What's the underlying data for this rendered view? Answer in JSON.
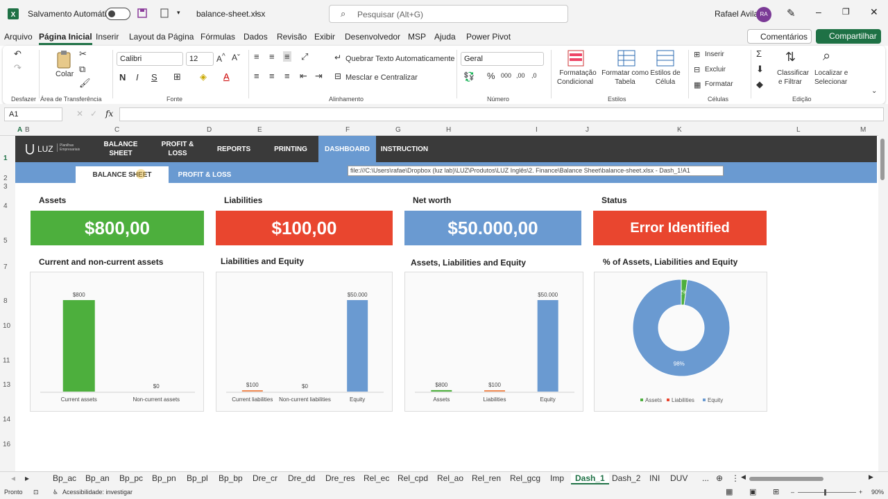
{
  "titlebar": {
    "autosave_label": "Salvamento Automático",
    "filename": "balance-sheet.xlsx",
    "search_placeholder": "Pesquisar (Alt+G)",
    "user_name": "Rafael Avila",
    "user_initials": "RA"
  },
  "menu": {
    "items": [
      "Arquivo",
      "Página Inicial",
      "Inserir",
      "Layout da Página",
      "Fórmulas",
      "Dados",
      "Revisão",
      "Exibir",
      "Desenvolvedor",
      "MSP",
      "Ajuda",
      "Power Pivot"
    ],
    "comments": "Comentários",
    "share": "Compartilhar"
  },
  "ribbon": {
    "undo_group": "Desfazer",
    "paste": "Colar",
    "clipboard_group": "Área de Transferência",
    "font_name": "Calibri",
    "font_size": "12",
    "font_group": "Fonte",
    "wrap_text": "Quebrar Texto Automaticamente",
    "merge_center": "Mesclar e Centralizar",
    "alignment_group": "Alinhamento",
    "number_format": "Geral",
    "number_group": "Número",
    "cond_format_1": "Formatação",
    "cond_format_2": "Condicional",
    "format_table_1": "Formatar como",
    "format_table_2": "Tabela",
    "cell_styles_1": "Estilos de",
    "cell_styles_2": "Célula",
    "styles_group": "Estilos",
    "insert": "Inserir",
    "delete": "Excluir",
    "format": "Formatar",
    "cells_group": "Células",
    "sort_1": "Classificar",
    "sort_2": "e Filtrar",
    "find_1": "Localizar e",
    "find_2": "Selecionar",
    "editing_group": "Edição"
  },
  "formula_bar": {
    "name_box": "A1",
    "fx": "fx",
    "content": ""
  },
  "columns": [
    "A",
    "B",
    "C",
    "D",
    "E",
    "F",
    "G",
    "H",
    "I",
    "J",
    "K",
    "L",
    "M"
  ],
  "rows": [
    "1",
    "2",
    "3",
    "4",
    "5",
    "7",
    "8",
    "10",
    "11",
    "13",
    "14",
    "16"
  ],
  "dashboard": {
    "logo": "LUZ",
    "logo_sub": "Planilhas Empresariais",
    "nav": [
      {
        "label": "BALANCE SHEET"
      },
      {
        "label": "PROFIT & LOSS"
      },
      {
        "label": "REPORTS"
      },
      {
        "label": "PRINTING"
      },
      {
        "label": "DASHBOARD"
      },
      {
        "label": "INSTRUCTION"
      }
    ],
    "subnav": [
      {
        "label": "BALANCE SHEET"
      },
      {
        "label": "PROFIT & LOSS"
      }
    ],
    "tooltip": "file:///C:\\Users\\rafae\\Dropbox (luz lab)\\LUZ\\Produtos\\LUZ Inglês\\2. Finance\\Balance Sheet\\balance-sheet.xlsx - Dash_1!A1",
    "kpis": [
      {
        "title": "Assets",
        "value": "$800,00",
        "color": "#4daf3d"
      },
      {
        "title": "Liabilities",
        "value": "$100,00",
        "color": "#e9462f"
      },
      {
        "title": "Net worth",
        "value": "$50.000,00",
        "color": "#6a9ad1"
      },
      {
        "title": "Status",
        "value": "Error Identified",
        "color": "#e9462f"
      }
    ]
  },
  "chart_data": [
    {
      "type": "bar",
      "title": "Current and non-current assets",
      "categories": [
        "Current assets",
        "Non-current assets"
      ],
      "values": [
        800,
        0
      ],
      "labels": [
        "$800",
        "$0"
      ],
      "colors": [
        "#4daf3d",
        "#4daf3d"
      ],
      "ylim": [
        0,
        800
      ]
    },
    {
      "type": "bar",
      "title": "Liabilities and Equity",
      "categories": [
        "Current liabilities",
        "Non-current liabilities",
        "Equity"
      ],
      "values": [
        100,
        0,
        50000
      ],
      "labels": [
        "$100",
        "$0",
        "$50.000"
      ],
      "colors": [
        "#f08a52",
        "#e9462f",
        "#6a9ad1"
      ],
      "ylim": [
        0,
        50000
      ]
    },
    {
      "type": "bar",
      "title": "Assets, Liabilities and Equity",
      "categories": [
        "Assets",
        "Liabilities",
        "Equity"
      ],
      "values": [
        800,
        100,
        50000
      ],
      "labels": [
        "$800",
        "$100",
        "$50.000"
      ],
      "colors": [
        "#4daf3d",
        "#f08a52",
        "#6a9ad1"
      ],
      "ylim": [
        0,
        50000
      ]
    },
    {
      "type": "pie",
      "title": "% of Assets, Liabilities and Equity",
      "categories": [
        "Assets",
        "Liabilities",
        "Equity"
      ],
      "values": [
        2,
        0,
        98
      ],
      "labels": [
        "2%",
        "",
        "98%"
      ],
      "colors": [
        "#4daf3d",
        "#e9462f",
        "#6a9ad1"
      ],
      "legend": "bottom"
    }
  ],
  "sheet_tabs": [
    "Bp_ac",
    "Bp_an",
    "Bp_pc",
    "Bp_pn",
    "Bp_pl",
    "Bp_bp",
    "Dre_cr",
    "Dre_dd",
    "Dre_res",
    "Rel_ec",
    "Rel_cpd",
    "Rel_ao",
    "Rel_ren",
    "Rel_gcg",
    "Imp",
    "Dash_1",
    "Dash_2",
    "INI",
    "DUV",
    "..."
  ],
  "active_tab": "Dash_1",
  "status": {
    "ready": "Pronto",
    "accessibility": "Acessibilidade: investigar",
    "zoom": "90%"
  }
}
